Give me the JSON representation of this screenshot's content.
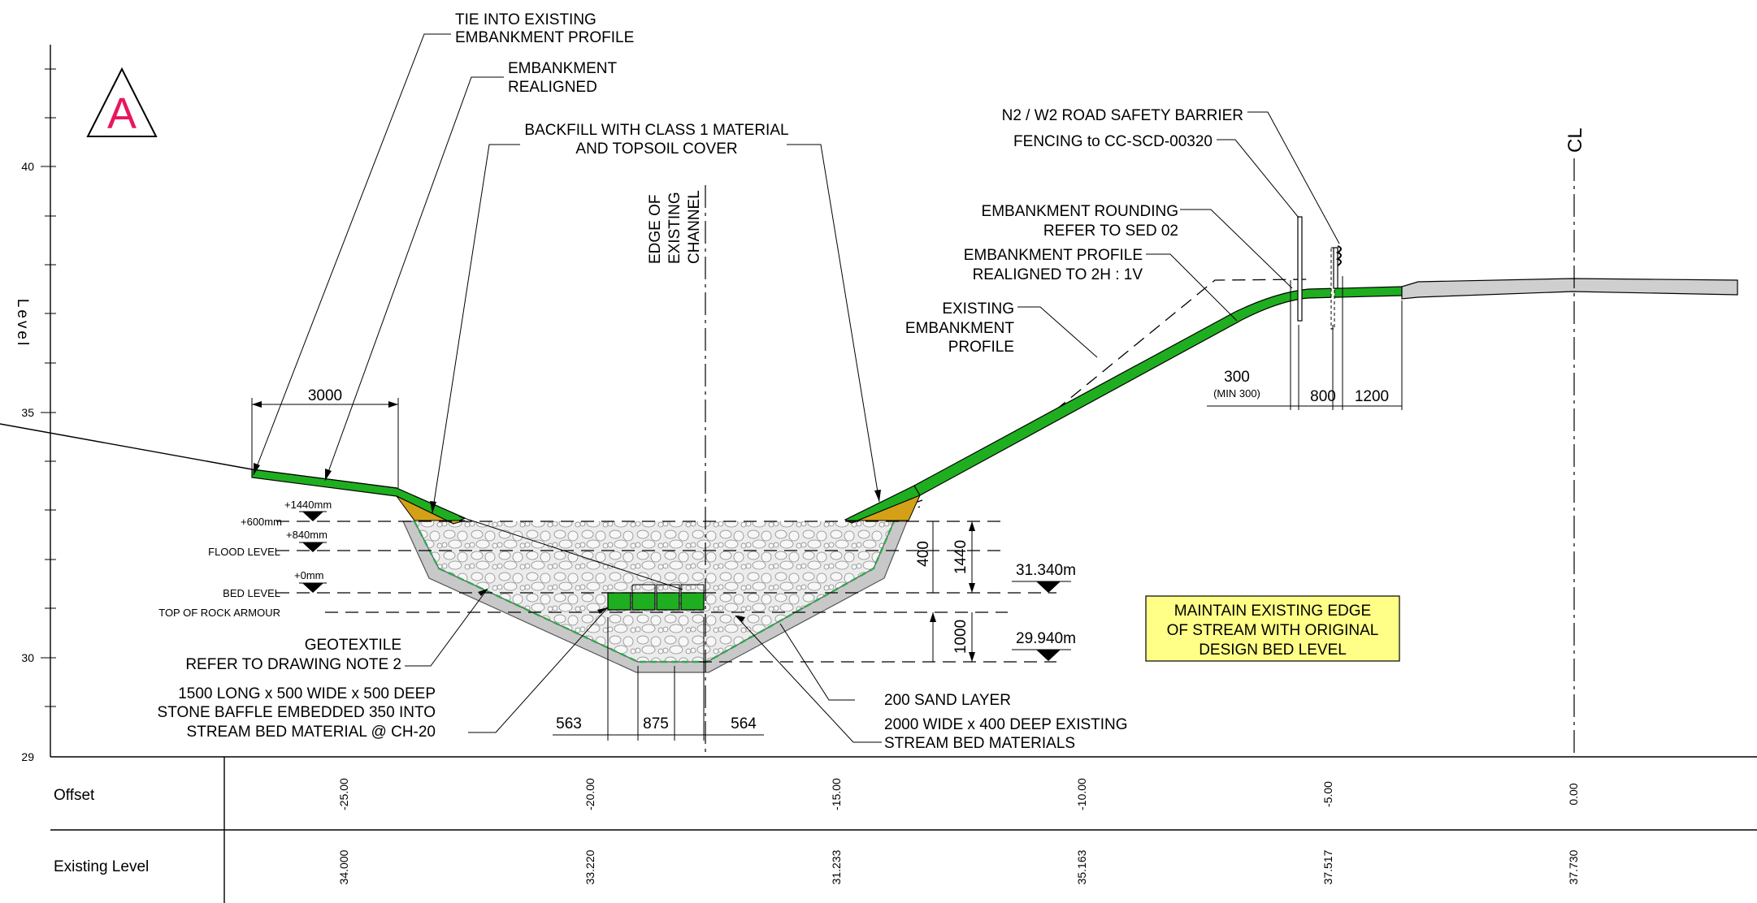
{
  "section_marker": {
    "letter": "A",
    "color": "#e8175d"
  },
  "axis": {
    "title": "Level",
    "level_ticks": [
      "40",
      "35",
      "30",
      "29"
    ]
  },
  "labels": {
    "tie_in": [
      "TIE INTO EXISTING",
      "EMBANKMENT PROFILE"
    ],
    "embankment_realigned": [
      "EMBANKMENT",
      "REALIGNED"
    ],
    "backfill": [
      "BACKFILL WITH CLASS 1 MATERIAL",
      "AND TOPSOIL COVER"
    ],
    "edge_channel": [
      "EDGE OF",
      "EXISTING",
      "CHANNEL"
    ],
    "barrier": "N2 / W2 ROAD SAFETY BARRIER",
    "fencing": "FENCING to CC-SCD-00320",
    "cl": "CL",
    "rounding": [
      "EMBANKMENT ROUNDING",
      "REFER TO SED 02"
    ],
    "profile_realigned": [
      "EMBANKMENT PROFILE",
      "REALIGNED TO 2H : 1V"
    ],
    "existing_profile": [
      "EXISTING",
      "EMBANKMENT",
      "PROFILE"
    ],
    "geotextile": [
      "GEOTEXTILE",
      "REFER TO DRAWING NOTE 2"
    ],
    "baffle": [
      "1500 LONG x 500 WIDE x 500 DEEP",
      "STONE BAFFLE EMBEDDED 350 INTO",
      "STREAM BED MATERIAL @ CH-20"
    ],
    "sand": "200 SAND LAYER",
    "bed_materials": [
      "2000 WIDE x 400 DEEP EXISTING",
      "STREAM BED MATERIALS"
    ],
    "note": [
      "MAINTAIN EXISTING EDGE",
      "OF STREAM WITH ORIGINAL",
      "DESIGN BED LEVEL"
    ]
  },
  "levels": {
    "plus1440": "+1440mm",
    "plus600": "+600mm",
    "plus840": "+840mm",
    "flood": "FLOOD LEVEL",
    "plus0": "+0mm",
    "bed": "BED LEVEL",
    "rock_top": "TOP OF ROCK ARMOUR",
    "rl_upper": "31.340m",
    "rl_lower": "29.940m"
  },
  "dimensions": {
    "d3000": "3000",
    "d300": "300",
    "d300_min": "(MIN 300)",
    "d800": "800",
    "d1200": "1200",
    "d400": "400",
    "d1440": "1440",
    "d1000": "1000",
    "d563": "563",
    "d875": "875",
    "d564": "564"
  },
  "table": {
    "offset_label": "Offset",
    "existing_label": "Existing Level",
    "offsets": [
      "-25.00",
      "-20.00",
      "-15.00",
      "-10.00",
      "-5.00",
      "0.00"
    ],
    "existing_levels": [
      "34.000",
      "33.220",
      "31.233",
      "35.163",
      "37.517",
      "37.730"
    ]
  },
  "colors": {
    "embankment": "#1fae1f",
    "topsoil": "#d4a017",
    "rock": "#e6e6e6",
    "sand": "#c8c8c8",
    "road": "#cfcfcf",
    "note_bg": "#ffff88"
  }
}
